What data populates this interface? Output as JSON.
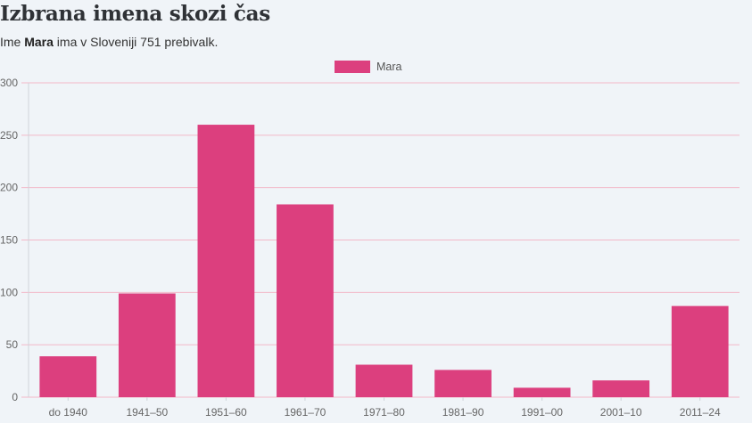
{
  "header": {
    "title": "Izbrana imena skozi čas",
    "subtitle_prefix": "Ime ",
    "subtitle_name": "Mara",
    "subtitle_suffix": " ima v Sloveniji 751 prebivalk."
  },
  "colors": {
    "bar": "#dc3f7e",
    "grid": "#f3b8c8",
    "axis": "#cfd4da",
    "background": "#f0f4f8"
  },
  "chart_data": {
    "type": "bar",
    "title": "",
    "xlabel": "",
    "ylabel": "",
    "categories": [
      "do 1940",
      "1941–50",
      "1951–60",
      "1961–70",
      "1971–80",
      "1981–90",
      "1991–00",
      "2001–10",
      "2011–24"
    ],
    "series": [
      {
        "name": "Mara",
        "values": [
          39,
          99,
          260,
          184,
          31,
          26,
          9,
          16,
          87
        ]
      }
    ],
    "ylim": [
      0,
      300
    ],
    "yticks": [
      0,
      50,
      100,
      150,
      200,
      250,
      300
    ],
    "ytick_labels": [
      "0",
      "50",
      "100",
      "150",
      "200",
      "250",
      "300"
    ],
    "grid": true,
    "legend": "top-center"
  }
}
